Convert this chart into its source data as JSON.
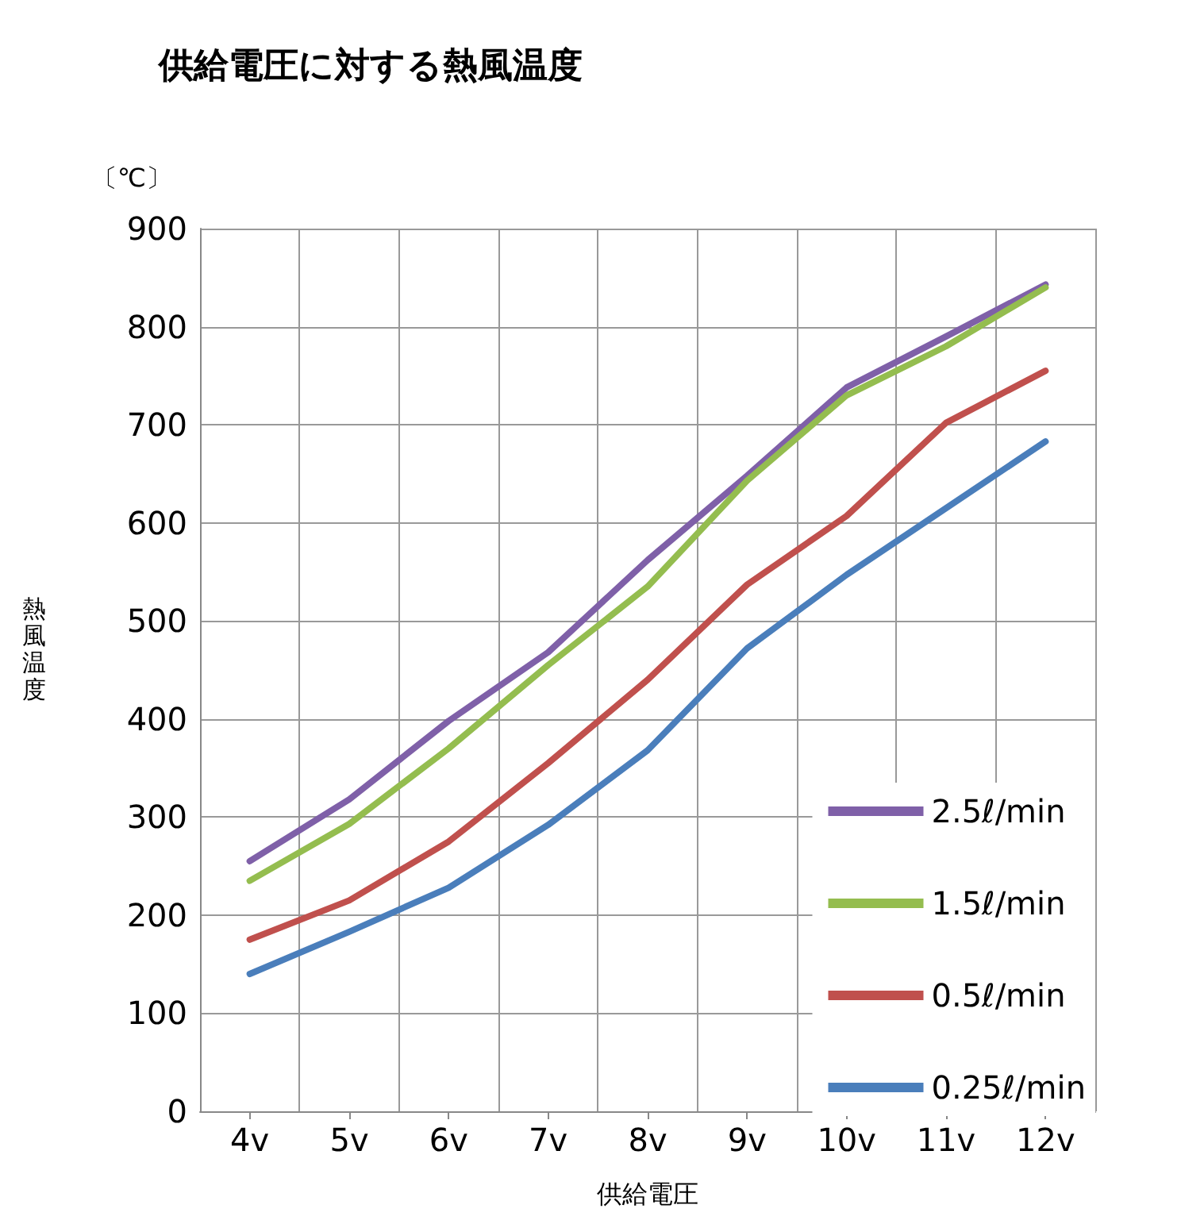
{
  "chart_data": {
    "type": "line",
    "title": "供給電圧に対する熱風温度",
    "xlabel": "供給電圧",
    "ylabel": "熱風温度",
    "annotations": [
      "〔℃〕"
    ],
    "categories": [
      "4v",
      "5v",
      "6v",
      "7v",
      "8v",
      "9v",
      "10v",
      "11v",
      "12v"
    ],
    "series": [
      {
        "name": "2.5ℓ/min",
        "color": "#7f60a8",
        "values": [
          255,
          318,
          398,
          468,
          562,
          648,
          738,
          790,
          843
        ]
      },
      {
        "name": "1.5ℓ/min",
        "color": "#94bd4f",
        "values": [
          235,
          293,
          370,
          455,
          535,
          643,
          730,
          780,
          840
        ]
      },
      {
        "name": "0.5ℓ/min",
        "color": "#c0504d",
        "values": [
          175,
          215,
          275,
          355,
          440,
          537,
          607,
          702,
          755
        ]
      },
      {
        "name": "0.25ℓ/min",
        "color": "#4a7ebb",
        "values": [
          140,
          183,
          228,
          292,
          368,
          472,
          547,
          615,
          683
        ]
      }
    ],
    "ylim": [
      0,
      900
    ],
    "yticks": [
      0,
      100,
      200,
      300,
      400,
      500,
      600,
      700,
      800,
      900
    ],
    "grid": true,
    "legend": "bottom right",
    "marker": "none",
    "line_style": "solid"
  }
}
